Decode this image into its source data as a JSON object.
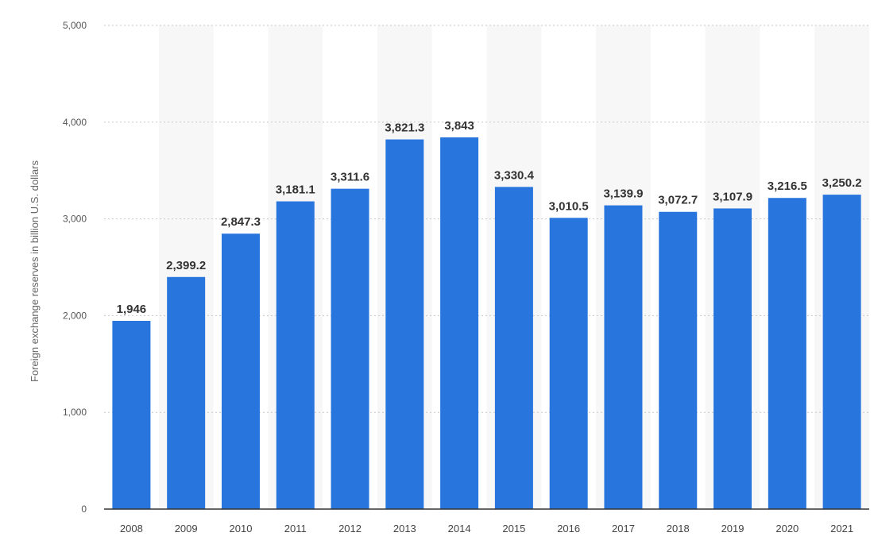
{
  "chart_data": {
    "type": "bar",
    "title": "",
    "xlabel": "",
    "ylabel": "Foreign exchange reserves in billion U.S. dollars",
    "ylim": [
      0,
      5000
    ],
    "yticks": [
      0,
      1000,
      2000,
      3000,
      4000,
      5000
    ],
    "ytick_labels": [
      "0",
      "1,000",
      "2,000",
      "3,000",
      "4,000",
      "5,000"
    ],
    "grid": true,
    "legend": "none",
    "categories": [
      "2008",
      "2009",
      "2010",
      "2011",
      "2012",
      "2013",
      "2014",
      "2015",
      "2016",
      "2017",
      "2018",
      "2019",
      "2020",
      "2021"
    ],
    "values": [
      1946,
      2399.2,
      2847.3,
      3181.1,
      3311.6,
      3821.3,
      3843,
      3330.4,
      3010.5,
      3139.9,
      3072.7,
      3107.9,
      3216.5,
      3250.2
    ],
    "data_labels": [
      "1,946",
      "2,399.2",
      "2,847.3",
      "3,181.1",
      "3,311.6",
      "3,821.3",
      "3,843",
      "3,330.4",
      "3,010.5",
      "3,139.9",
      "3,072.7",
      "3,107.9",
      "3,216.5",
      "3,250.2"
    ],
    "colors": {
      "bar": "#2875de",
      "band": "#f7f7f7",
      "grid": "#c8c8c8",
      "axis": "#333333"
    }
  }
}
